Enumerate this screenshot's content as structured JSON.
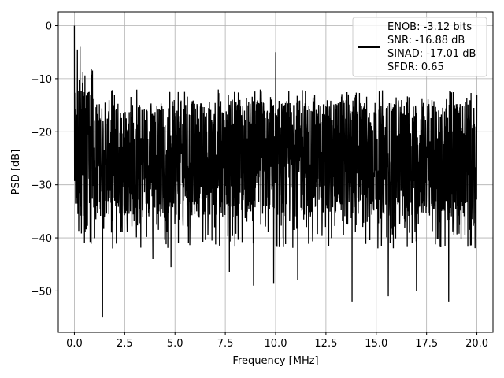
{
  "chart_data": {
    "type": "line",
    "title": "",
    "xlabel": "Frequency [MHz]",
    "ylabel": "PSD [dB]",
    "xlim": [
      -0.8,
      20.8
    ],
    "ylim": [
      -57.8,
      2.6
    ],
    "x_ticks": [
      0.0,
      2.5,
      5.0,
      7.5,
      10.0,
      12.5,
      15.0,
      17.5,
      20.0
    ],
    "x_tick_labels": [
      "0.0",
      "2.5",
      "5.0",
      "7.5",
      "10.0",
      "12.5",
      "15.0",
      "17.5",
      "20.0"
    ],
    "y_ticks": [
      0,
      -10,
      -20,
      -30,
      -40,
      -50
    ],
    "y_tick_labels": [
      "0",
      "−10",
      "−20",
      "−30",
      "−40",
      "−50"
    ],
    "grid": true,
    "legend_position": "top-right",
    "line_color": "#000000",
    "series": [
      {
        "name": "",
        "x_range": [
          0.0,
          20.0
        ],
        "noise_floor_range": [
          -36,
          -14
        ],
        "peaks": [
          {
            "x": 0.0,
            "y": 0.0
          },
          {
            "x": 0.15,
            "y": -4.5
          },
          {
            "x": 0.28,
            "y": -4.0
          },
          {
            "x": 10.0,
            "y": -5.0
          },
          {
            "x": 20.0,
            "y": -13.0
          }
        ],
        "dips": [
          {
            "x": 0.5,
            "y": -41.0
          },
          {
            "x": 1.4,
            "y": -55.0
          },
          {
            "x": 1.9,
            "y": -42.0
          },
          {
            "x": 3.9,
            "y": -44.0
          },
          {
            "x": 4.8,
            "y": -45.5
          },
          {
            "x": 7.7,
            "y": -46.5
          },
          {
            "x": 8.9,
            "y": -49.0
          },
          {
            "x": 9.9,
            "y": -48.5
          },
          {
            "x": 11.1,
            "y": -48.0
          },
          {
            "x": 13.8,
            "y": -52.0
          },
          {
            "x": 15.6,
            "y": -51.0
          },
          {
            "x": 17.0,
            "y": -50.0
          },
          {
            "x": 18.6,
            "y": -52.0
          }
        ]
      }
    ],
    "legend": {
      "lines": [
        "ENOB: -3.12 bits",
        "SNR: -16.88 dB",
        "SINAD: -17.01 dB",
        "SFDR: 0.65"
      ]
    }
  }
}
